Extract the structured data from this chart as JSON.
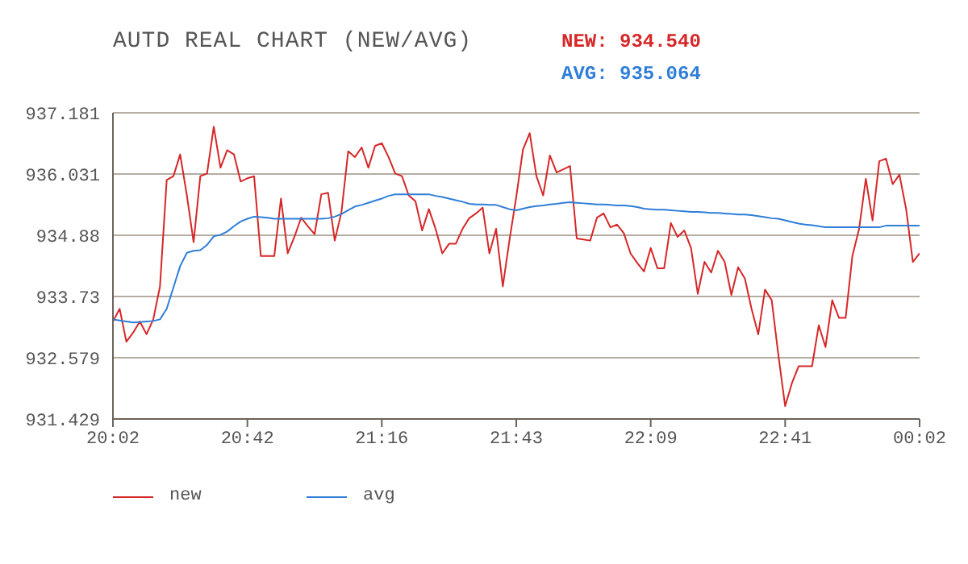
{
  "chart_data": {
    "type": "line",
    "title": "AUTD REAL CHART (NEW/AVG)",
    "annotations": [
      "NEW: 934.540",
      "AVG: 935.064"
    ],
    "categories": [
      "20:02",
      null,
      null,
      null,
      null,
      null,
      null,
      null,
      null,
      null,
      null,
      null,
      null,
      null,
      null,
      null,
      null,
      null,
      null,
      null,
      "20:42",
      null,
      null,
      null,
      null,
      null,
      null,
      null,
      null,
      null,
      null,
      null,
      null,
      null,
      null,
      null,
      null,
      null,
      null,
      null,
      "21:16",
      null,
      null,
      null,
      null,
      null,
      null,
      null,
      null,
      null,
      null,
      null,
      null,
      null,
      null,
      null,
      null,
      null,
      null,
      null,
      "21:43",
      null,
      null,
      null,
      null,
      null,
      null,
      null,
      null,
      null,
      null,
      null,
      null,
      null,
      null,
      null,
      null,
      null,
      null,
      null,
      "22:09",
      null,
      null,
      null,
      null,
      null,
      null,
      null,
      null,
      null,
      null,
      null,
      null,
      null,
      null,
      null,
      null,
      null,
      null,
      null,
      "22:41",
      null,
      null,
      null,
      null,
      null,
      null,
      null,
      null,
      null,
      null,
      null,
      null,
      null,
      null,
      null,
      null,
      null,
      null,
      null,
      "00:02"
    ],
    "ylim": [
      931.429,
      937.181
    ],
    "yticks": [
      931.429,
      932.579,
      933.73,
      934.88,
      936.031,
      937.181
    ],
    "grid": "y",
    "legend": "bottom left",
    "marker": "none",
    "line_style": "solid",
    "series": [
      {
        "name": "new",
        "color": "#d62728",
        "values": [
          933.26,
          933.5,
          932.88,
          933.05,
          933.26,
          933.02,
          933.3,
          933.92,
          935.92,
          935.99,
          936.4,
          935.63,
          934.75,
          935.99,
          936.04,
          936.92,
          936.15,
          936.48,
          936.4,
          935.89,
          935.95,
          935.99,
          934.49,
          934.49,
          934.49,
          935.57,
          934.54,
          934.85,
          935.21,
          935.05,
          934.9,
          935.65,
          935.68,
          934.78,
          935.32,
          936.46,
          936.35,
          936.53,
          936.15,
          936.56,
          936.61,
          936.35,
          936.04,
          935.99,
          935.63,
          935.52,
          934.97,
          935.37,
          935.0,
          934.54,
          934.72,
          934.72,
          935.0,
          935.2,
          935.29,
          935.4,
          934.54,
          935.0,
          933.92,
          934.8,
          935.6,
          936.49,
          936.8,
          935.99,
          935.63,
          936.38,
          936.06,
          936.12,
          936.18,
          934.82,
          934.8,
          934.78,
          935.21,
          935.29,
          935.03,
          935.08,
          934.92,
          934.54,
          934.36,
          934.2,
          934.64,
          934.26,
          934.26,
          935.11,
          934.85,
          934.97,
          934.64,
          933.78,
          934.38,
          934.18,
          934.59,
          934.38,
          933.76,
          934.28,
          934.07,
          933.5,
          933.02,
          933.86,
          933.66,
          932.62,
          931.67,
          932.1,
          932.42,
          932.42,
          932.42,
          933.19,
          932.78,
          933.66,
          933.33,
          933.33,
          934.49,
          935.0,
          935.94,
          935.16,
          936.27,
          936.32,
          935.84,
          936.02,
          935.37,
          934.38,
          934.54
        ]
      },
      {
        "name": "avg",
        "color": "#2f7ed8",
        "values": [
          933.3,
          933.28,
          933.26,
          933.24,
          933.25,
          933.26,
          933.27,
          933.3,
          933.5,
          933.9,
          934.3,
          934.55,
          934.59,
          934.6,
          934.7,
          934.86,
          934.89,
          934.95,
          935.05,
          935.14,
          935.19,
          935.23,
          935.22,
          935.21,
          935.19,
          935.19,
          935.19,
          935.19,
          935.19,
          935.19,
          935.19,
          935.19,
          935.2,
          935.23,
          935.28,
          935.35,
          935.42,
          935.45,
          935.49,
          935.53,
          935.57,
          935.62,
          935.65,
          935.65,
          935.65,
          935.65,
          935.65,
          935.65,
          935.62,
          935.6,
          935.57,
          935.54,
          935.51,
          935.47,
          935.46,
          935.46,
          935.45,
          935.45,
          935.41,
          935.37,
          935.35,
          935.38,
          935.41,
          935.43,
          935.44,
          935.46,
          935.47,
          935.49,
          935.5,
          935.49,
          935.48,
          935.47,
          935.46,
          935.46,
          935.45,
          935.44,
          935.44,
          935.43,
          935.41,
          935.38,
          935.37,
          935.36,
          935.36,
          935.35,
          935.34,
          935.33,
          935.32,
          935.32,
          935.31,
          935.3,
          935.3,
          935.29,
          935.28,
          935.27,
          935.27,
          935.26,
          935.24,
          935.22,
          935.2,
          935.19,
          935.16,
          935.13,
          935.1,
          935.08,
          935.07,
          935.05,
          935.03,
          935.03,
          935.03,
          935.03,
          935.03,
          935.03,
          935.03,
          935.03,
          935.03,
          935.06,
          935.06,
          935.06,
          935.06,
          935.06,
          935.06
        ]
      }
    ]
  }
}
